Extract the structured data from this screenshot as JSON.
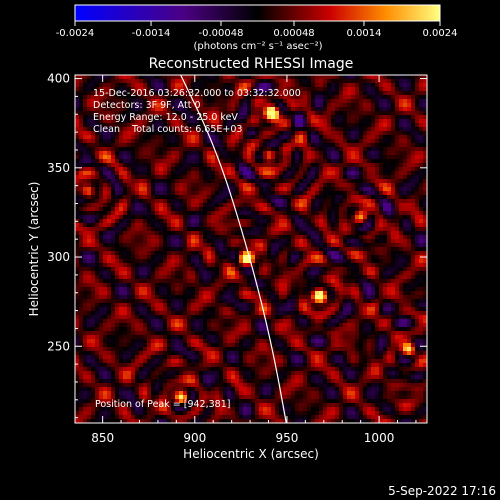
{
  "chart_data": {
    "type": "heatmap",
    "title": "Reconstructed RHESSI Image",
    "xlabel": "Heliocentric X (arcsec)",
    "ylabel": "Heliocentric Y (arcsec)",
    "xlim": [
      835,
      1026
    ],
    "ylim": [
      207,
      402
    ],
    "x_ticks": [
      "850",
      "900",
      "950",
      "1000"
    ],
    "x_tick_values": [
      850,
      900,
      950,
      1000
    ],
    "y_ticks": [
      "250",
      "300",
      "350",
      "400"
    ],
    "y_tick_values": [
      250,
      300,
      350,
      400
    ],
    "grid": false,
    "colorbar": {
      "tick_labels": [
        "-0.0024",
        "-0.0014",
        "-0.00048",
        "0.00048",
        "0.0014",
        "0.0024"
      ],
      "tick_values": [
        -0.0024,
        -0.0014,
        -0.00048,
        0.00048,
        0.0014,
        0.0024
      ],
      "range": [
        -0.0024,
        0.0024
      ],
      "unit_label": "(photons cm⁻² s⁻¹ asec⁻²)",
      "colormap": [
        "#0000ff",
        "#4b0082",
        "#000000",
        "#cc0000",
        "#ff8c00",
        "#ffff80"
      ]
    },
    "annotations": [
      "15-Dec-2016 03:26:32.000 to 03:32:32.000",
      "Detectors: 3F 9F, Att 0",
      "Energy Range: 12.0 - 25.0 keV",
      "Clean    Total counts: 6.65E+03"
    ],
    "peak_label": "Position of Peak = [942,381]",
    "sources": [
      {
        "x": 942,
        "y": 381,
        "value": 0.0024
      },
      {
        "x": 928,
        "y": 299,
        "value": 0.0021
      },
      {
        "x": 968,
        "y": 278,
        "value": 0.0022
      },
      {
        "x": 893,
        "y": 221,
        "value": 0.0018
      },
      {
        "x": 940,
        "y": 357,
        "value": 0.0012
      },
      {
        "x": 842,
        "y": 337,
        "value": 0.001
      },
      {
        "x": 1016,
        "y": 248,
        "value": 0.0011
      },
      {
        "x": 990,
        "y": 322,
        "value": 0.0009
      }
    ],
    "limb_curve": [
      [
        890,
        407
      ],
      [
        912,
        360
      ],
      [
        930,
        300
      ],
      [
        942,
        250
      ],
      [
        950,
        205
      ]
    ],
    "footer": "5-Sep-2022 17:16"
  }
}
